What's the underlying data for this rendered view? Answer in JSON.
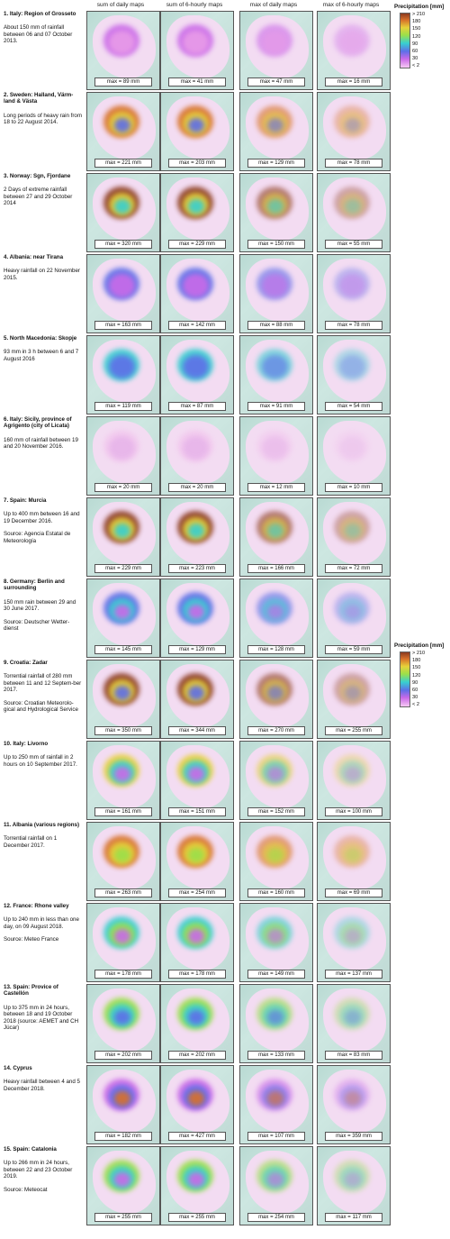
{
  "columns": [
    "sum of daily maps",
    "sum of 6-hourly maps",
    "max of daily maps",
    "max of 6-hourly maps"
  ],
  "legend": {
    "title": "Precipitation [mm]",
    "ticks": [
      "> 210",
      "180",
      "150",
      "120",
      "90",
      "60",
      "30",
      "< 2"
    ]
  },
  "events": [
    {
      "title": "1. Italy: Region of Grosseto",
      "text": "About 150 mm of rainfall between 06 and 07 October 2013.",
      "source": "",
      "max": [
        "max = 89 mm",
        "max = 41 mm",
        "max = 47 mm",
        "max = 16 mm"
      ]
    },
    {
      "title": "2. Sweden: Halland, Värm-land & Västa",
      "text": "Long periods of heavy rain from 18 to 22 August 2014.",
      "source": "",
      "max": [
        "max = 221 mm",
        "max = 203 mm",
        "max = 129 mm",
        "max = 78 mm"
      ]
    },
    {
      "title": "3. Norway: Sgn, Fjordane",
      "text": "2 Days of extreme rainfall between 27 and 29 October 2014",
      "source": "",
      "max": [
        "max = 320 mm",
        "max = 229 mm",
        "max = 150 mm",
        "max = 55 mm"
      ]
    },
    {
      "title": "4. Albania: near Tirana",
      "text": "Heavy rainfall on 22 November 2015.",
      "source": "",
      "max": [
        "max = 163 mm",
        "max = 142 mm",
        "max = 88  mm",
        "max = 78 mm"
      ]
    },
    {
      "title": "5. North Macedonia: Skopje",
      "text": "93 mm in 3 h between 6 and 7 August 2016",
      "source": "",
      "max": [
        "max = 119 mm",
        "max = 87 mm",
        "max = 91 mm",
        "max = 54 mm"
      ]
    },
    {
      "title": "6. Italy: Sicily, province of Agrigento (city of Licata)",
      "text": "160 mm of rainfall between 19 and 20 November 2016.",
      "source": "",
      "max": [
        "max = 20 mm",
        "max = 20 mm",
        "max = 12  mm",
        "max = 10 mm"
      ]
    },
    {
      "title": "7. Spain: Murcia",
      "text": "Up to 400 mm between 16 and 19 December 2016.",
      "source": "Source: Agencia Estatal de Meteorología",
      "max": [
        "max = 229 mm",
        "max = 223 mm",
        "max = 166  mm",
        "max = 72 mm"
      ]
    },
    {
      "title": "8. Germany: Berlin and surrounding",
      "text": "150 mm rain between 29 and 30 June 2017.",
      "source": "Source: Deutscher Wetter-dienst",
      "max": [
        "max = 145 mm",
        "max = 129 mm",
        "max = 128  mm",
        "max = 59 mm"
      ]
    },
    {
      "title": "9. Croatia: Zadar",
      "text": "Torrential rainfall of 280 mm between 11 and 12 Septem-ber 2017.",
      "source": "Source: Croatian Meteorolo-gical and Hydrological Service",
      "max": [
        "max = 350 mm",
        "max = 344 mm",
        "max = 270  mm",
        "max = 255 mm"
      ]
    },
    {
      "title": "10. Italy: Livorno",
      "text": "Up to 250 mm of rainfall in 2 hours on 10 September 2017.",
      "source": "",
      "max": [
        "max = 161 mm",
        "max = 151 mm",
        "max = 152  mm",
        "max = 100 mm"
      ]
    },
    {
      "title": "11. Albania (various regions)",
      "text": "Torrential rainfall on 1 December 2017.",
      "source": "",
      "max": [
        "max = 263 mm",
        "max = 254 mm",
        "max = 160  mm",
        "max = 69 mm"
      ]
    },
    {
      "title": "12. France: Rhone valley",
      "text": "Up to 240 mm in less than one day, on 09 August 2018.",
      "source": "Source: Meteo France",
      "max": [
        "max = 178 mm",
        "max = 178 mm",
        "max = 149  mm",
        "max = 137 mm"
      ]
    },
    {
      "title": "13. Spain: Provice of Castellón",
      "text": "Up to 375 mm in 24 hours, between 18 and 19 October 2018 (source: AEMET and CH Júcar)",
      "source": "",
      "max": [
        "max = 202 mm",
        "max = 202 mm",
        "max = 133  mm",
        "max = 83 mm"
      ]
    },
    {
      "title": "14. Cyprus",
      "text": "Heavy rainfall between 4 and 5 December 2018.",
      "source": "",
      "max": [
        "max = 182 mm",
        "max = 427 mm",
        "max = 107  mm",
        "max = 359 mm"
      ]
    },
    {
      "title": "15. Spain: Catalonia",
      "text": "Up to 266 mm in 24 hours, between 22 and 23 October 2019.",
      "source": "Source: Meteocat",
      "max": [
        "max = 255 mm",
        "max = 255 mm",
        "max = 254  mm",
        "max = 117 mm"
      ]
    }
  ]
}
